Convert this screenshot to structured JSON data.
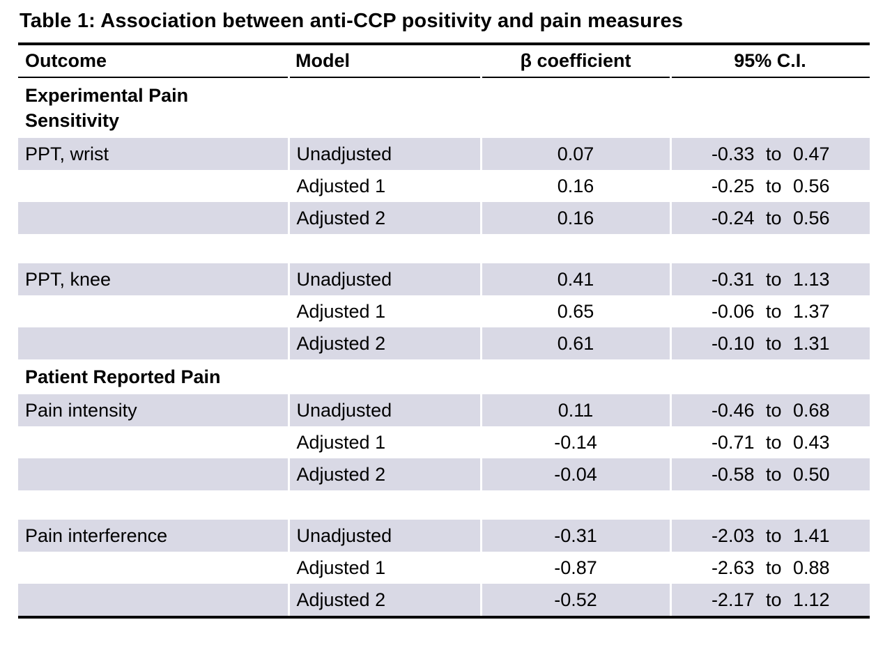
{
  "title": "Table 1: Association between anti-CCP positivity and pain measures",
  "table": {
    "headers": [
      "Outcome",
      "Model",
      "β coefficient",
      "95% C.I."
    ],
    "shade_color": "#d9d9e5",
    "rows": [
      {
        "type": "section",
        "label": "Experimental Pain Sensitivity"
      },
      {
        "type": "data",
        "shaded": true,
        "outcome": "PPT, wrist",
        "model": "Unadjusted",
        "beta": "0.07",
        "ci": "-0.33 to 0.47"
      },
      {
        "type": "data",
        "shaded": false,
        "outcome": "",
        "model": "Adjusted 1",
        "beta": "0.16",
        "ci": "-0.25 to 0.56"
      },
      {
        "type": "data",
        "shaded": true,
        "outcome": "",
        "model": "Adjusted 2",
        "beta": "0.16",
        "ci": "-0.24 to 0.56"
      },
      {
        "type": "spacer"
      },
      {
        "type": "data",
        "shaded": true,
        "outcome": "PPT, knee",
        "model": "Unadjusted",
        "beta": "0.41",
        "ci": "-0.31 to 1.13"
      },
      {
        "type": "data",
        "shaded": false,
        "outcome": "",
        "model": "Adjusted 1",
        "beta": "0.65",
        "ci": "-0.06 to 1.37"
      },
      {
        "type": "data",
        "shaded": true,
        "outcome": "",
        "model": "Adjusted 2",
        "beta": "0.61",
        "ci": "-0.10 to 1.31"
      },
      {
        "type": "section",
        "label": "Patient Reported Pain"
      },
      {
        "type": "data",
        "shaded": true,
        "outcome": "Pain intensity",
        "model": "Unadjusted",
        "beta": "0.11",
        "ci": "-0.46 to 0.68"
      },
      {
        "type": "data",
        "shaded": false,
        "outcome": "",
        "model": "Adjusted 1",
        "beta": "-0.14",
        "ci": "-0.71 to 0.43"
      },
      {
        "type": "data",
        "shaded": true,
        "outcome": "",
        "model": "Adjusted 2",
        "beta": "-0.04",
        "ci": "-0.58 to 0.50"
      },
      {
        "type": "spacer"
      },
      {
        "type": "data",
        "shaded": true,
        "outcome": "Pain interference",
        "model": "Unadjusted",
        "beta": "-0.31",
        "ci": "-2.03 to 1.41"
      },
      {
        "type": "data",
        "shaded": false,
        "outcome": "",
        "model": "Adjusted 1",
        "beta": "-0.87",
        "ci": "-2.63 to 0.88"
      },
      {
        "type": "data",
        "shaded": true,
        "outcome": "",
        "model": "Adjusted 2",
        "beta": "-0.52",
        "ci": "-2.17 to 1.12"
      }
    ]
  }
}
